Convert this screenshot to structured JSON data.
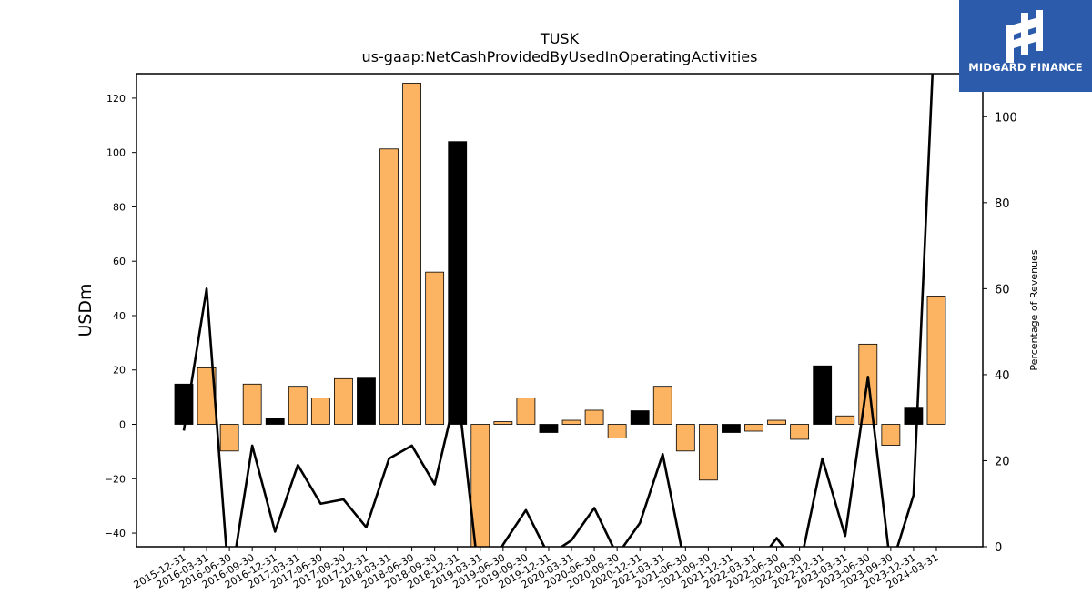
{
  "logo": {
    "name": "MIDGARD FINANCE"
  },
  "chart_data": {
    "type": "bar",
    "title": "TUSK",
    "subtitle": "us-gaap:NetCashProvidedByUsedInOperatingActivities",
    "ylabel": "USDm",
    "y2label": "Percentage of Revenues",
    "ylim": [
      -45,
      129
    ],
    "y2lim": [
      0,
      110
    ],
    "yticks": [
      -40,
      -20,
      0,
      20,
      40,
      60,
      80,
      100,
      120
    ],
    "y2ticks": [
      0,
      20,
      40,
      60,
      80,
      100
    ],
    "categories": [
      "2015-12-31",
      "2016-03-31",
      "2016-06-30",
      "2016-09-30",
      "2016-12-31",
      "2017-03-31",
      "2017-06-30",
      "2017-09-30",
      "2017-12-31",
      "2018-03-31",
      "2018-06-30",
      "2018-09-30",
      "2018-12-31",
      "2019-03-31",
      "2019-06-30",
      "2019-09-30",
      "2019-12-31",
      "2020-03-31",
      "2020-06-30",
      "2020-09-30",
      "2020-12-31",
      "2021-03-31",
      "2021-06-30",
      "2021-09-30",
      "2021-12-31",
      "2022-03-31",
      "2022-06-30",
      "2022-09-30",
      "2022-12-31",
      "2023-03-31",
      "2023-06-30",
      "2023-09-30",
      "2023-12-31",
      "2024-03-31"
    ],
    "series": [
      {
        "type": "bar",
        "axis": "left",
        "values": [
          14.8,
          20.8,
          -9.8,
          14.8,
          2.3,
          14.0,
          9.7,
          16.8,
          17.0,
          101.3,
          125.5,
          56.0,
          104.0,
          -46.0,
          1.0,
          9.7,
          -3.0,
          1.5,
          5.2,
          -5.0,
          5.0,
          14.0,
          -9.8,
          -20.5,
          -3.0,
          -2.5,
          1.5,
          -5.5,
          21.5,
          3.1,
          29.5,
          -7.7,
          6.3,
          47.2
        ],
        "colors": [
          "#000000",
          "#fdb462",
          "#fdb462",
          "#fdb462",
          "#000000",
          "#fdb462",
          "#fdb462",
          "#fdb462",
          "#000000",
          "#fdb462",
          "#fdb462",
          "#fdb462",
          "#000000",
          "#fdb462",
          "#fdb462",
          "#fdb462",
          "#000000",
          "#fdb462",
          "#fdb462",
          "#fdb462",
          "#000000",
          "#fdb462",
          "#fdb462",
          "#fdb462",
          "#000000",
          "#fdb462",
          "#fdb462",
          "#fdb462",
          "#000000",
          "#fdb462",
          "#fdb462",
          "#fdb462",
          "#000000",
          "#fdb462"
        ]
      },
      {
        "type": "line",
        "axis": "right",
        "color": "#000000",
        "values": [
          27,
          60,
          -10,
          23.5,
          3.5,
          19,
          10,
          11,
          4.5,
          20.5,
          23.5,
          14.5,
          37,
          -10,
          0.5,
          8.5,
          -2,
          1.5,
          9,
          -2,
          5.5,
          21.5,
          -5,
          -10,
          -10,
          -5,
          2,
          -5,
          20.5,
          2.5,
          39.5,
          -5,
          12,
          130
        ],
        "range_note": "line values below 0 or above 110 lie outside the plotted right-axis range"
      }
    ],
    "colors": {
      "odd": "#fdb462",
      "highlight": "#000000",
      "line": "#000000",
      "logo_bg": "#2c5bab"
    },
    "grid": false,
    "legend": "none"
  }
}
